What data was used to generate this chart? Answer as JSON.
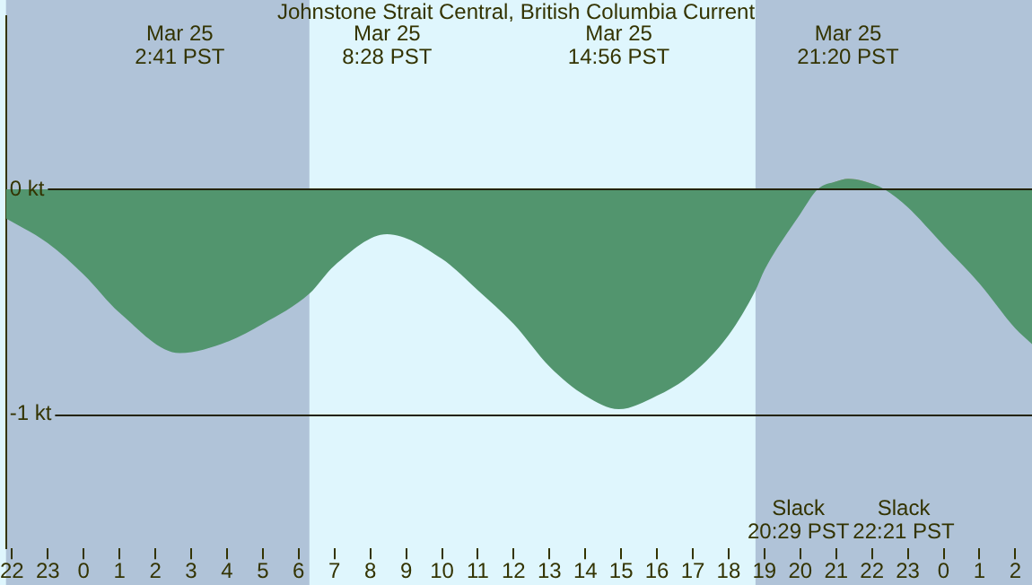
{
  "chart_data": {
    "type": "area",
    "title": "Johnstone Strait Central, British Columbia Current",
    "xlim": [
      "--03-24T21:50",
      "--03-26T02:28"
    ],
    "ylim": [
      -1.6,
      0.77
    ],
    "xticks": [
      {
        "value": "--03-24T22:00",
        "label": "22"
      },
      {
        "value": "--03-24T23:00",
        "label": "23"
      },
      {
        "value": "--03-25T00:00",
        "label": "0"
      },
      {
        "value": "--03-25T01:00",
        "label": "1"
      },
      {
        "value": "--03-25T02:00",
        "label": "2"
      },
      {
        "value": "--03-25T03:00",
        "label": "3"
      },
      {
        "value": "--03-25T04:00",
        "label": "4"
      },
      {
        "value": "--03-25T05:00",
        "label": "5"
      },
      {
        "value": "--03-25T06:00",
        "label": "6"
      },
      {
        "value": "--03-25T07:00",
        "label": "7"
      },
      {
        "value": "--03-25T08:00",
        "label": "8"
      },
      {
        "value": "--03-25T09:00",
        "label": "9"
      },
      {
        "value": "--03-25T10:00",
        "label": "10"
      },
      {
        "value": "--03-25T11:00",
        "label": "11"
      },
      {
        "value": "--03-25T12:00",
        "label": "12"
      },
      {
        "value": "--03-25T13:00",
        "label": "13"
      },
      {
        "value": "--03-25T14:00",
        "label": "14"
      },
      {
        "value": "--03-25T15:00",
        "label": "15"
      },
      {
        "value": "--03-25T16:00",
        "label": "16"
      },
      {
        "value": "--03-25T17:00",
        "label": "17"
      },
      {
        "value": "--03-25T18:00",
        "label": "18"
      },
      {
        "value": "--03-25T19:00",
        "label": "19"
      },
      {
        "value": "--03-25T20:00",
        "label": "20"
      },
      {
        "value": "--03-25T21:00",
        "label": "21"
      },
      {
        "value": "--03-25T22:00",
        "label": "22"
      },
      {
        "value": "--03-25T23:00",
        "label": "23"
      },
      {
        "value": "--03-26T00:00",
        "label": "0"
      },
      {
        "value": "--03-26T01:00",
        "label": "1"
      },
      {
        "value": "--03-26T02:00",
        "label": "2"
      }
    ],
    "yticks": [
      {
        "value": -1,
        "label": "-1 kt"
      },
      {
        "value": 0,
        "label": "0 kt"
      }
    ],
    "grid": "y",
    "bands": [
      {
        "axis": "x",
        "from": "--03-24T21:50",
        "to": "--03-25T06:18",
        "color": "#b0c3d8"
      },
      {
        "axis": "x",
        "from": "--03-25T18:45",
        "to": "--03-26T02:28",
        "color": "#b0c3d8"
      }
    ],
    "series": [
      {
        "color": "#52956e",
        "x": [
          "--03-24T21:50",
          "--03-24T23:00",
          "--03-25T00:00",
          "--03-25T01:00",
          "--03-25T02:41",
          "--03-25T04:00",
          "--03-25T05:00",
          "--03-25T06:18",
          "--03-25T07:00",
          "--03-25T08:28",
          "--03-25T10:00",
          "--03-25T11:00",
          "--03-25T12:00",
          "--03-25T13:00",
          "--03-25T14:00",
          "--03-25T14:56",
          "--03-25T16:00",
          "--03-25T17:00",
          "--03-25T18:00",
          "--03-25T18:45",
          "--03-25T19:00",
          "--03-25T20:00",
          "--03-25T20:29",
          "--03-25T21:00",
          "--03-25T21:20",
          "--03-25T21:48",
          "--03-25T22:21",
          "--03-25T23:00",
          "--03-26T00:00",
          "--03-26T01:00",
          "--03-26T02:00",
          "--03-26T02:28"
        ],
        "values": [
          -0.13,
          -0.24,
          -0.38,
          -0.55,
          -0.73,
          -0.68,
          -0.6,
          -0.465,
          -0.34,
          -0.2,
          -0.31,
          -0.45,
          -0.6,
          -0.79,
          -0.92,
          -0.98,
          -0.92,
          -0.82,
          -0.65,
          -0.45,
          -0.36,
          -0.11,
          0,
          0.035,
          0.047,
          0.035,
          0,
          -0.08,
          -0.25,
          -0.42,
          -0.62,
          -0.69
        ]
      },
      {
        "color": "#c09a70",
        "x": [
          "--03-25T20:29",
          "--03-25T21:00",
          "--03-25T21:20",
          "--03-25T21:48",
          "--03-25T22:21"
        ],
        "values": [
          0,
          0.035,
          0.047,
          0.035,
          0
        ]
      }
    ],
    "annotations": [
      "Mar 25\n2:41 PST",
      "Mar 25\n8:28 PST",
      "Mar 25\n14:56 PST",
      "Mar 25\n21:20 PST",
      "Slack\n20:29 PST",
      "Slack\n22:21 PST"
    ]
  }
}
